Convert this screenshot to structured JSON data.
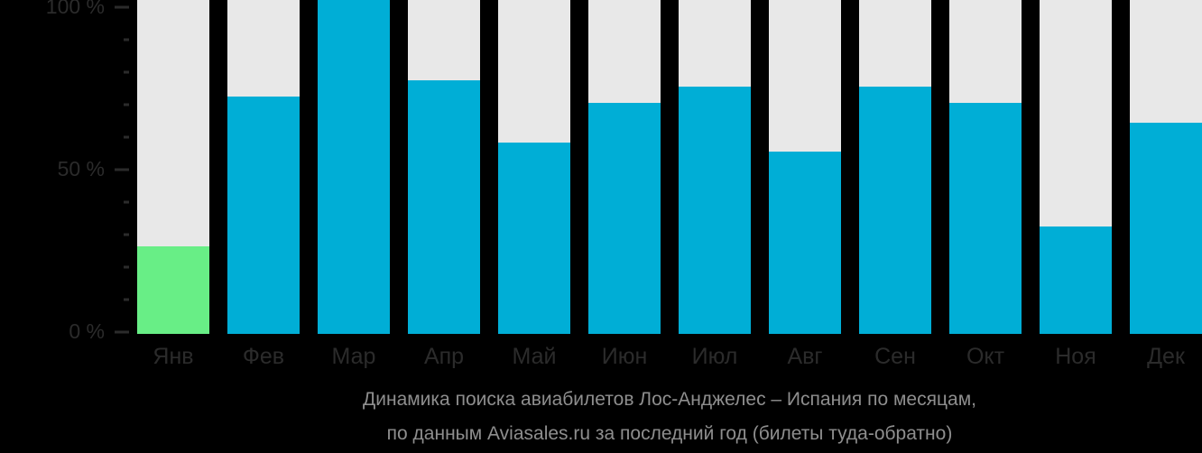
{
  "colors": {
    "background": "#000000",
    "column_background": "#e8e8e8",
    "bar_blue": "#00aed6",
    "bar_green": "#68ee86",
    "axis_text": "#2b2b2b",
    "caption_text": "#8e8e8e"
  },
  "y_axis": {
    "unit": "%",
    "ticks": [
      {
        "value": 100,
        "label": "100 %"
      },
      {
        "value": 90
      },
      {
        "value": 80
      },
      {
        "value": 70
      },
      {
        "value": 60
      },
      {
        "value": 50,
        "label": "50 %"
      },
      {
        "value": 40
      },
      {
        "value": 30
      },
      {
        "value": 20
      },
      {
        "value": 10
      },
      {
        "value": 0,
        "label": "0 %"
      }
    ]
  },
  "caption": {
    "line1": "Динамика поиска авиабилетов Лос-Анджелес – Испания по месяцам,",
    "line2": "по данным Aviasales.ru за последний год (билеты туда-обратно)"
  },
  "chart_data": {
    "type": "bar",
    "title": "Динамика поиска авиабилетов Лос-Анджелес – Испания по месяцам, по данным Aviasales.ru за последний год (билеты туда-обратно)",
    "categories": [
      "Янв",
      "Фев",
      "Мар",
      "Апр",
      "Май",
      "Июн",
      "Июл",
      "Авг",
      "Сен",
      "Окт",
      "Ноя",
      "Дек"
    ],
    "values": [
      27,
      73,
      100,
      78,
      59,
      71,
      76,
      56,
      76,
      71,
      33,
      65
    ],
    "unit": "%",
    "ylabel": "",
    "xlabel": "",
    "ylim": [
      0,
      100
    ],
    "grid": false,
    "legend": false,
    "bar_color": "#00aed6",
    "column_background_color": "#e8e8e8",
    "highlight": {
      "index": 0,
      "category": "Янв",
      "color": "#68ee86"
    }
  }
}
